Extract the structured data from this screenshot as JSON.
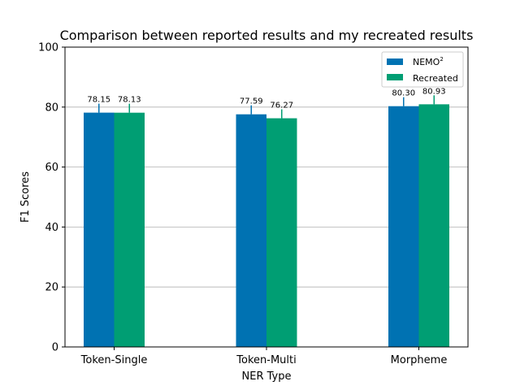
{
  "chart_data": {
    "type": "bar",
    "title": "Comparison between reported results and my recreated results",
    "xlabel": "NER Type",
    "ylabel": "F1 Scores",
    "categories": [
      "Token-Single",
      "Token-Multi",
      "Morpheme"
    ],
    "ylim": [
      0,
      100
    ],
    "yticks": [
      0,
      20,
      40,
      60,
      80,
      100
    ],
    "grid": "y",
    "legend_position": "top-right",
    "series": [
      {
        "name": "NEMO",
        "name_superscript": "2",
        "color": "#0072B2",
        "values": [
          78.15,
          77.59,
          80.3
        ],
        "labels": [
          "78.15",
          "77.59",
          "80.30"
        ],
        "error_upper": [
          3.0,
          3.0,
          3.0
        ]
      },
      {
        "name": "Recreated",
        "color": "#009E73",
        "values": [
          78.13,
          76.27,
          80.93
        ],
        "labels": [
          "78.13",
          "76.27",
          "80.93"
        ],
        "error_upper": [
          3.0,
          3.0,
          3.0
        ]
      }
    ]
  }
}
